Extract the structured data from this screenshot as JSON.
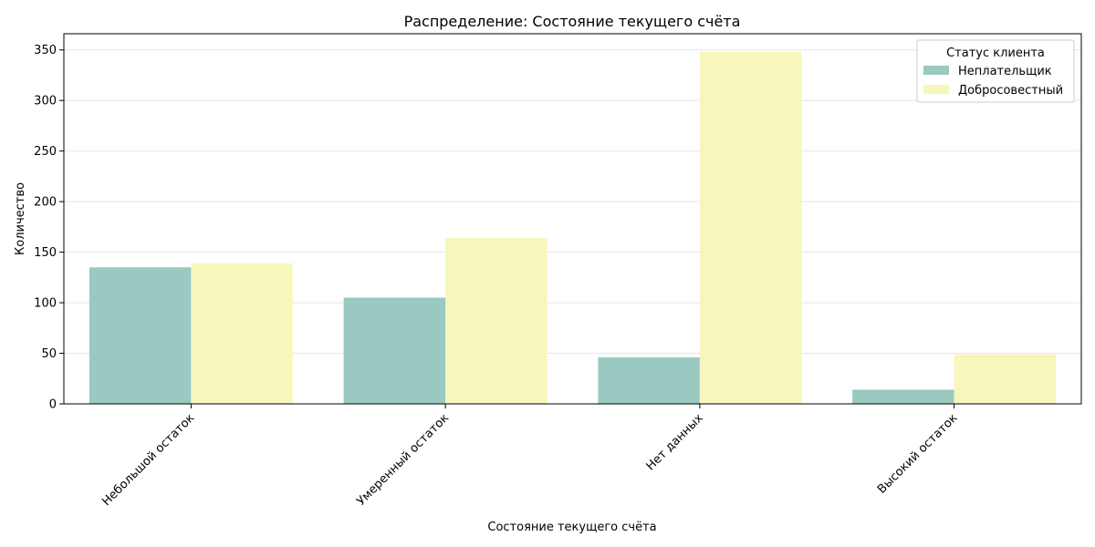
{
  "chart_data": {
    "type": "bar",
    "title": "Распределение: Состояние текущего счёта",
    "xlabel": "Состояние текущего счёта",
    "ylabel": "Количество",
    "categories": [
      "Небольшой остаток",
      "Умеренный остаток",
      "Нет данных",
      "Высокий остаток"
    ],
    "series": [
      {
        "name": "Неплательщик",
        "values": [
          135,
          105,
          46,
          14
        ],
        "color": "#99c9c1"
      },
      {
        "name": "Добросовестный",
        "values": [
          139,
          164,
          348,
          49
        ],
        "color": "#f6f6bd"
      }
    ],
    "ylim": [
      0,
      366
    ],
    "yticks": [
      0,
      50,
      100,
      150,
      200,
      250,
      300,
      350
    ],
    "grid": true,
    "legend": {
      "title": "Статус клиента",
      "position": "top-right"
    }
  }
}
